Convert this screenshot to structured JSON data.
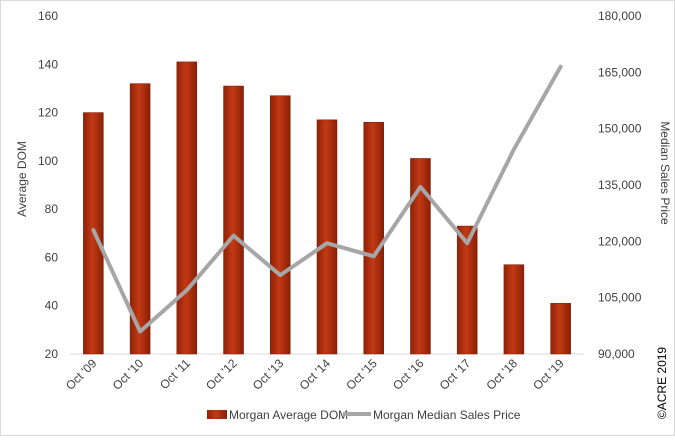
{
  "chart_data": {
    "type": "bar",
    "categories": [
      "Oct '09",
      "Oct '10",
      "Oct '11",
      "Oct '12",
      "Oct '13",
      "Oct '14",
      "Oct '15",
      "Oct '16",
      "Oct '17",
      "Oct '18",
      "Oct '19"
    ],
    "series": [
      {
        "name": "Morgan Average DOM",
        "type": "bar",
        "axis": "left",
        "color": "#b2300f",
        "values": [
          120,
          132,
          141,
          131,
          127,
          117,
          116,
          101,
          73,
          57,
          41
        ]
      },
      {
        "name": "Morgan Median Sales Price",
        "type": "line",
        "axis": "right",
        "color": "#a6a6a6",
        "values": [
          123000,
          96000,
          107000,
          121500,
          111000,
          119500,
          116000,
          134500,
          119500,
          144500,
          166500
        ]
      }
    ],
    "ylabel": "Average DOM",
    "y2label": "Median Sales Price",
    "ylim": [
      20,
      160
    ],
    "y2lim": [
      90000,
      180000
    ],
    "yticks": [
      "20",
      "40",
      "60",
      "80",
      "100",
      "120",
      "140",
      "160"
    ],
    "y2ticks": [
      "90,000",
      "105,000",
      "120,000",
      "135,000",
      "150,000",
      "165,000",
      "180,000"
    ],
    "legend_position": "bottom",
    "grid": false,
    "copyright": "©ACRE 2019"
  }
}
